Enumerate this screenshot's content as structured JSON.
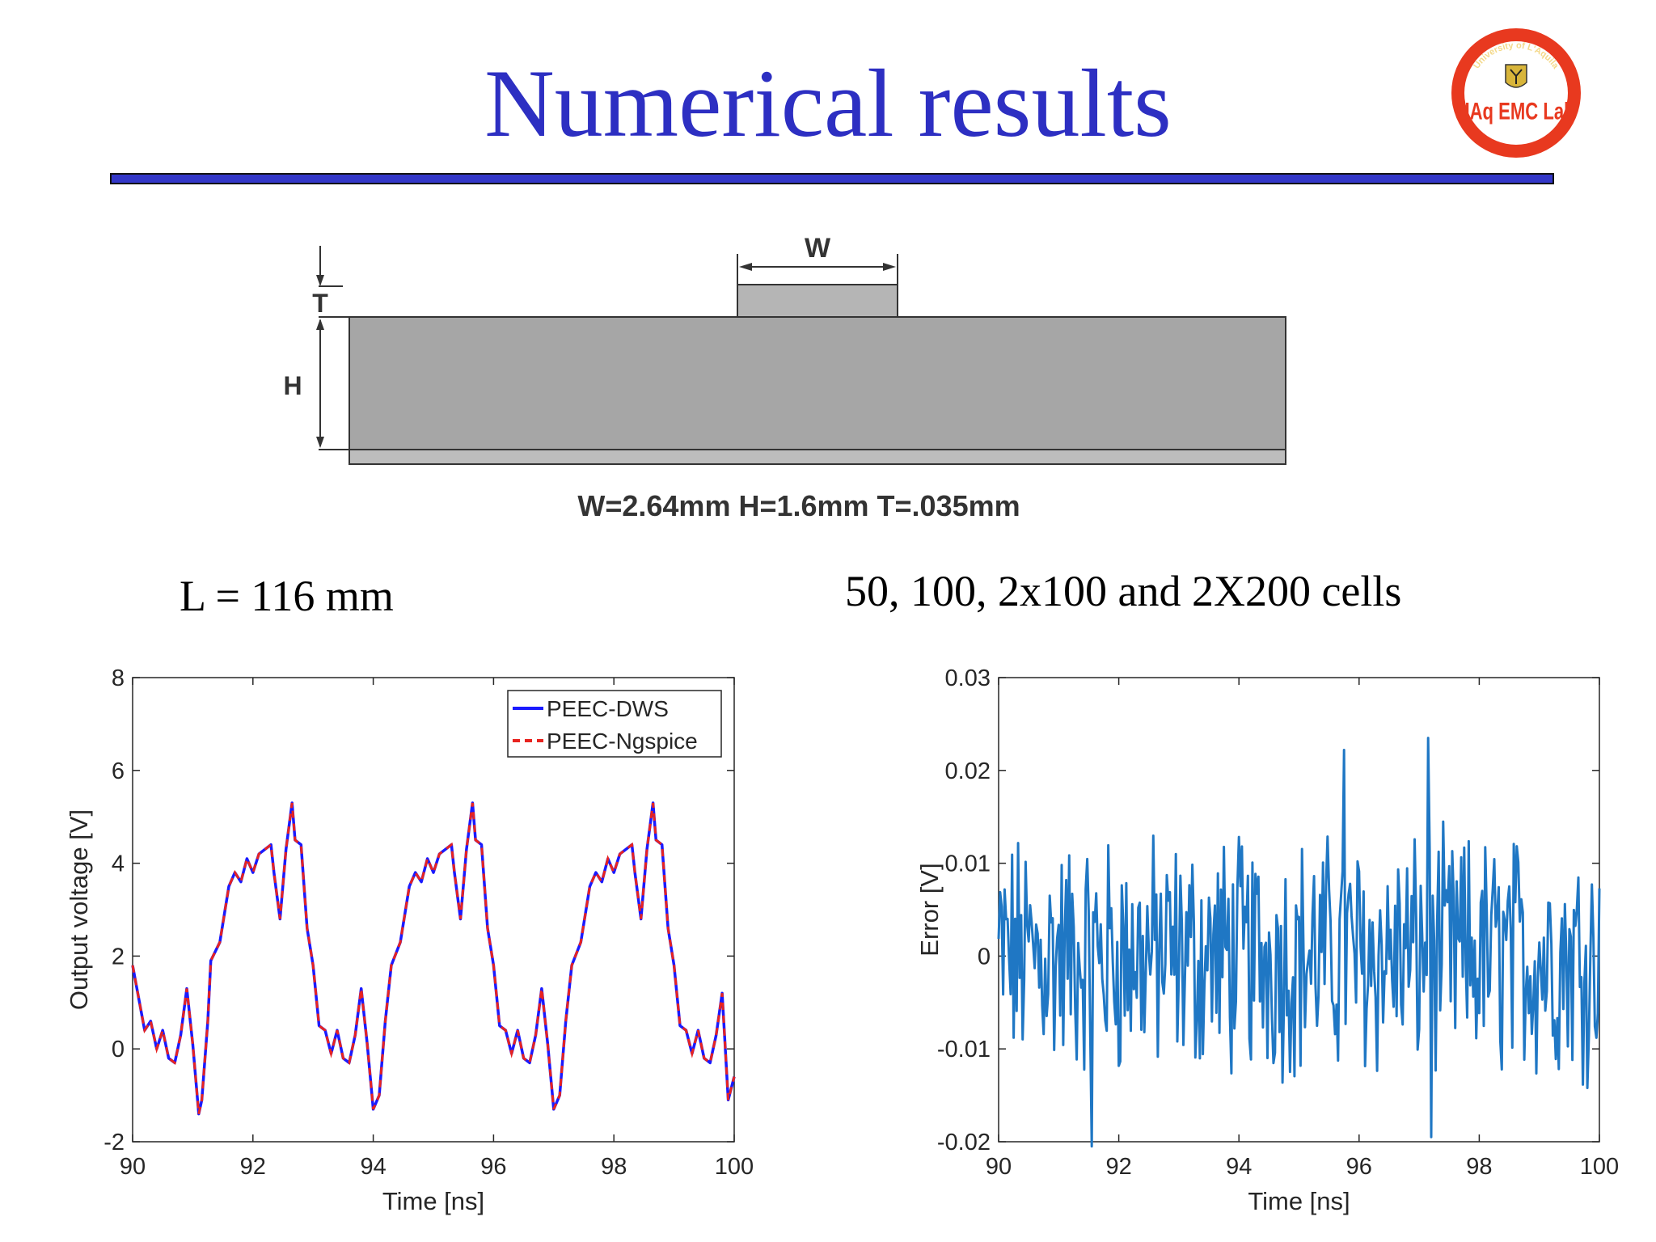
{
  "slide": {
    "title": "Numerical results",
    "logo": {
      "text": "UAq EMC Lab",
      "arc_text": "University of L'Aquila",
      "icon": "eagle-crest-icon",
      "ring_color": "#e8391f"
    },
    "diagram": {
      "labels": {
        "w": "W",
        "t": "T",
        "h": "H"
      },
      "caption": "W=2.64mm H=1.6mm T=.035mm"
    },
    "caption_left": "L = 116 mm",
    "caption_right": "50, 100, 2x100 and 2X200 cells"
  },
  "chart_data": [
    {
      "type": "line",
      "xlabel": "Time [ns]",
      "ylabel": "Output voltage [V]",
      "xlim": [
        90,
        100
      ],
      "ylim": [
        -2,
        8
      ],
      "xticks": [
        "90",
        "92",
        "94",
        "96",
        "98",
        "100"
      ],
      "yticks": [
        "-2",
        "0",
        "2",
        "4",
        "6",
        "8"
      ],
      "legend": [
        "PEEC-DWS",
        "PEEC-Ngspice"
      ],
      "legend_position": "top-right",
      "series": [
        {
          "name": "PEEC-DWS",
          "color": "#1a1aff",
          "style": "solid",
          "x": [
            90.0,
            90.2,
            90.3,
            90.4,
            90.5,
            90.6,
            90.7,
            90.8,
            90.9,
            91.0,
            91.1,
            91.15,
            91.25,
            91.3,
            91.45,
            91.6,
            91.7,
            91.8,
            91.9,
            92.0,
            92.1,
            92.2,
            92.3,
            92.35,
            92.45,
            92.55,
            92.65,
            92.7,
            92.8,
            92.9,
            93.0,
            93.1,
            93.2,
            93.3,
            93.4,
            93.5,
            93.6,
            93.7,
            93.8,
            93.9,
            94.0,
            94.1,
            94.2,
            94.3,
            94.45,
            94.6,
            94.7,
            94.8,
            94.9,
            95.0,
            95.1,
            95.2,
            95.3,
            95.35,
            95.45,
            95.55,
            95.65,
            95.7,
            95.8,
            95.9,
            96.0,
            96.1,
            96.2,
            96.3,
            96.4,
            96.5,
            96.6,
            96.7,
            96.8,
            96.9,
            97.0,
            97.1,
            97.2,
            97.3,
            97.45,
            97.6,
            97.7,
            97.8,
            97.9,
            98.0,
            98.1,
            98.2,
            98.3,
            98.35,
            98.45,
            98.55,
            98.65,
            98.7,
            98.8,
            98.9,
            99.0,
            99.1,
            99.2,
            99.3,
            99.4,
            99.5,
            99.6,
            99.7,
            99.8,
            99.9,
            100.0
          ],
          "y": [
            1.8,
            0.4,
            0.6,
            0.0,
            0.4,
            -0.2,
            -0.3,
            0.3,
            1.3,
            0.1,
            -1.4,
            -1.1,
            0.6,
            1.9,
            2.3,
            3.5,
            3.8,
            3.6,
            4.1,
            3.8,
            4.2,
            4.3,
            4.4,
            3.8,
            2.8,
            4.3,
            5.3,
            4.5,
            4.4,
            2.6,
            1.8,
            0.5,
            0.4,
            -0.1,
            0.4,
            -0.2,
            -0.3,
            0.3,
            1.3,
            0.1,
            -1.3,
            -1.0,
            0.6,
            1.8,
            2.3,
            3.5,
            3.8,
            3.6,
            4.1,
            3.8,
            4.2,
            4.3,
            4.4,
            3.8,
            2.8,
            4.3,
            5.3,
            4.5,
            4.4,
            2.6,
            1.8,
            0.5,
            0.4,
            -0.1,
            0.4,
            -0.2,
            -0.3,
            0.3,
            1.3,
            0.1,
            -1.3,
            -1.0,
            0.6,
            1.8,
            2.3,
            3.5,
            3.8,
            3.6,
            4.1,
            3.8,
            4.2,
            4.3,
            4.4,
            3.8,
            2.8,
            4.3,
            5.3,
            4.5,
            4.4,
            2.6,
            1.8,
            0.5,
            0.4,
            -0.1,
            0.4,
            -0.2,
            -0.3,
            0.3,
            1.2,
            -1.1,
            -0.6
          ]
        },
        {
          "name": "PEEC-Ngspice",
          "color": "#e8231f",
          "style": "dashed",
          "same_as": "PEEC-DWS"
        }
      ]
    },
    {
      "type": "line",
      "xlabel": "Time [ns]",
      "ylabel": "Error [V]",
      "xlim": [
        90,
        100
      ],
      "ylim": [
        -0.02,
        0.03
      ],
      "xticks": [
        "90",
        "92",
        "94",
        "96",
        "98",
        "100"
      ],
      "yticks": [
        "-0.02",
        "-0.01",
        "0",
        "0.01",
        "0.02",
        "0.03"
      ],
      "series": [
        {
          "name": "Error",
          "color": "#1f77c4",
          "style": "solid",
          "description": "high-frequency error signal, approx. 40 samples per ns",
          "x_start": 90,
          "x_end": 100,
          "peaks": [
            {
              "x": 95.75,
              "y": 0.0222
            },
            {
              "x": 97.15,
              "y": 0.0235
            },
            {
              "x": 91.55,
              "y": -0.0205
            },
            {
              "x": 97.2,
              "y": -0.0195
            }
          ]
        }
      ]
    }
  ]
}
